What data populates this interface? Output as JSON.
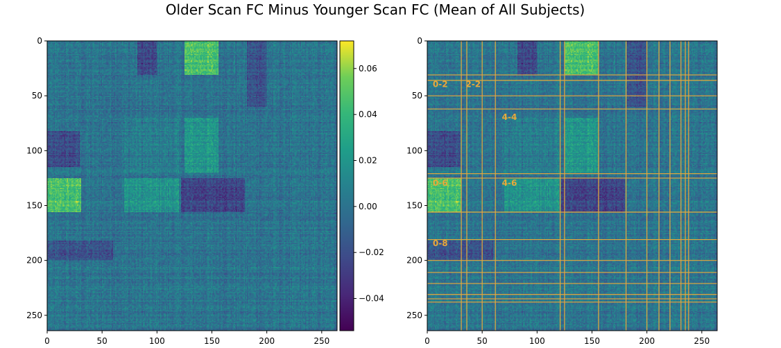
{
  "title": "Older Scan FC Minus Younger Scan FC (Mean of All Subjects)",
  "chart_data": [
    {
      "type": "heatmap",
      "size": 264,
      "xticks": [
        0,
        50,
        100,
        150,
        200,
        250
      ],
      "yticks": [
        0,
        50,
        100,
        150,
        200,
        250
      ],
      "xlim": [
        0,
        264
      ],
      "ylim": [
        264,
        0
      ],
      "blocks": [
        {
          "rows": [
            0,
            31
          ],
          "cols": [
            125,
            156
          ],
          "value": 0.045
        },
        {
          "rows": [
            125,
            156
          ],
          "cols": [
            0,
            31
          ],
          "value": 0.045
        },
        {
          "rows": [
            0,
            31
          ],
          "cols": [
            82,
            100
          ],
          "value": -0.025
        },
        {
          "rows": [
            82,
            115
          ],
          "cols": [
            0,
            30
          ],
          "value": -0.022
        },
        {
          "rows": [
            125,
            156
          ],
          "cols": [
            122,
            180
          ],
          "value": -0.025
        },
        {
          "rows": [
            70,
            120
          ],
          "cols": [
            70,
            120
          ],
          "value": 0.005
        },
        {
          "rows": [
            182,
            200
          ],
          "cols": [
            0,
            60
          ],
          "value": -0.018
        },
        {
          "rows": [
            0,
            60
          ],
          "cols": [
            182,
            200
          ],
          "value": -0.018
        },
        {
          "rows": [
            70,
            120
          ],
          "cols": [
            125,
            156
          ],
          "value": 0.02
        },
        {
          "rows": [
            125,
            156
          ],
          "cols": [
            70,
            120
          ],
          "value": 0.018
        }
      ],
      "colormap": "viridis"
    },
    {
      "type": "colorbar",
      "range": [
        -0.054,
        0.072
      ],
      "ticks": [
        0.06,
        0.04,
        0.02,
        0.0,
        -0.02,
        -0.04
      ],
      "tick_labels": [
        "0.06",
        "0.04",
        "0.02",
        "0.00",
        "−0.02",
        "−0.04"
      ]
    },
    {
      "type": "heatmap",
      "size": 264,
      "xticks": [
        0,
        50,
        100,
        150,
        200,
        250
      ],
      "yticks": [
        0,
        50,
        100,
        150,
        200,
        250
      ],
      "boundaries": [
        31,
        36,
        50,
        62,
        121,
        125,
        156,
        181,
        200,
        211,
        221,
        231,
        235,
        238
      ],
      "boundary_color": "#e8a93a",
      "annotations": [
        {
          "text": "0-2",
          "x": 5,
          "y": 42
        },
        {
          "text": "2-2",
          "x": 35,
          "y": 42
        },
        {
          "text": "4-4",
          "x": 68,
          "y": 72
        },
        {
          "text": "0-6",
          "x": 5,
          "y": 132
        },
        {
          "text": "4-6",
          "x": 68,
          "y": 132
        },
        {
          "text": "0-8",
          "x": 5,
          "y": 187
        }
      ],
      "annotation_color": "#e8a93a"
    }
  ]
}
